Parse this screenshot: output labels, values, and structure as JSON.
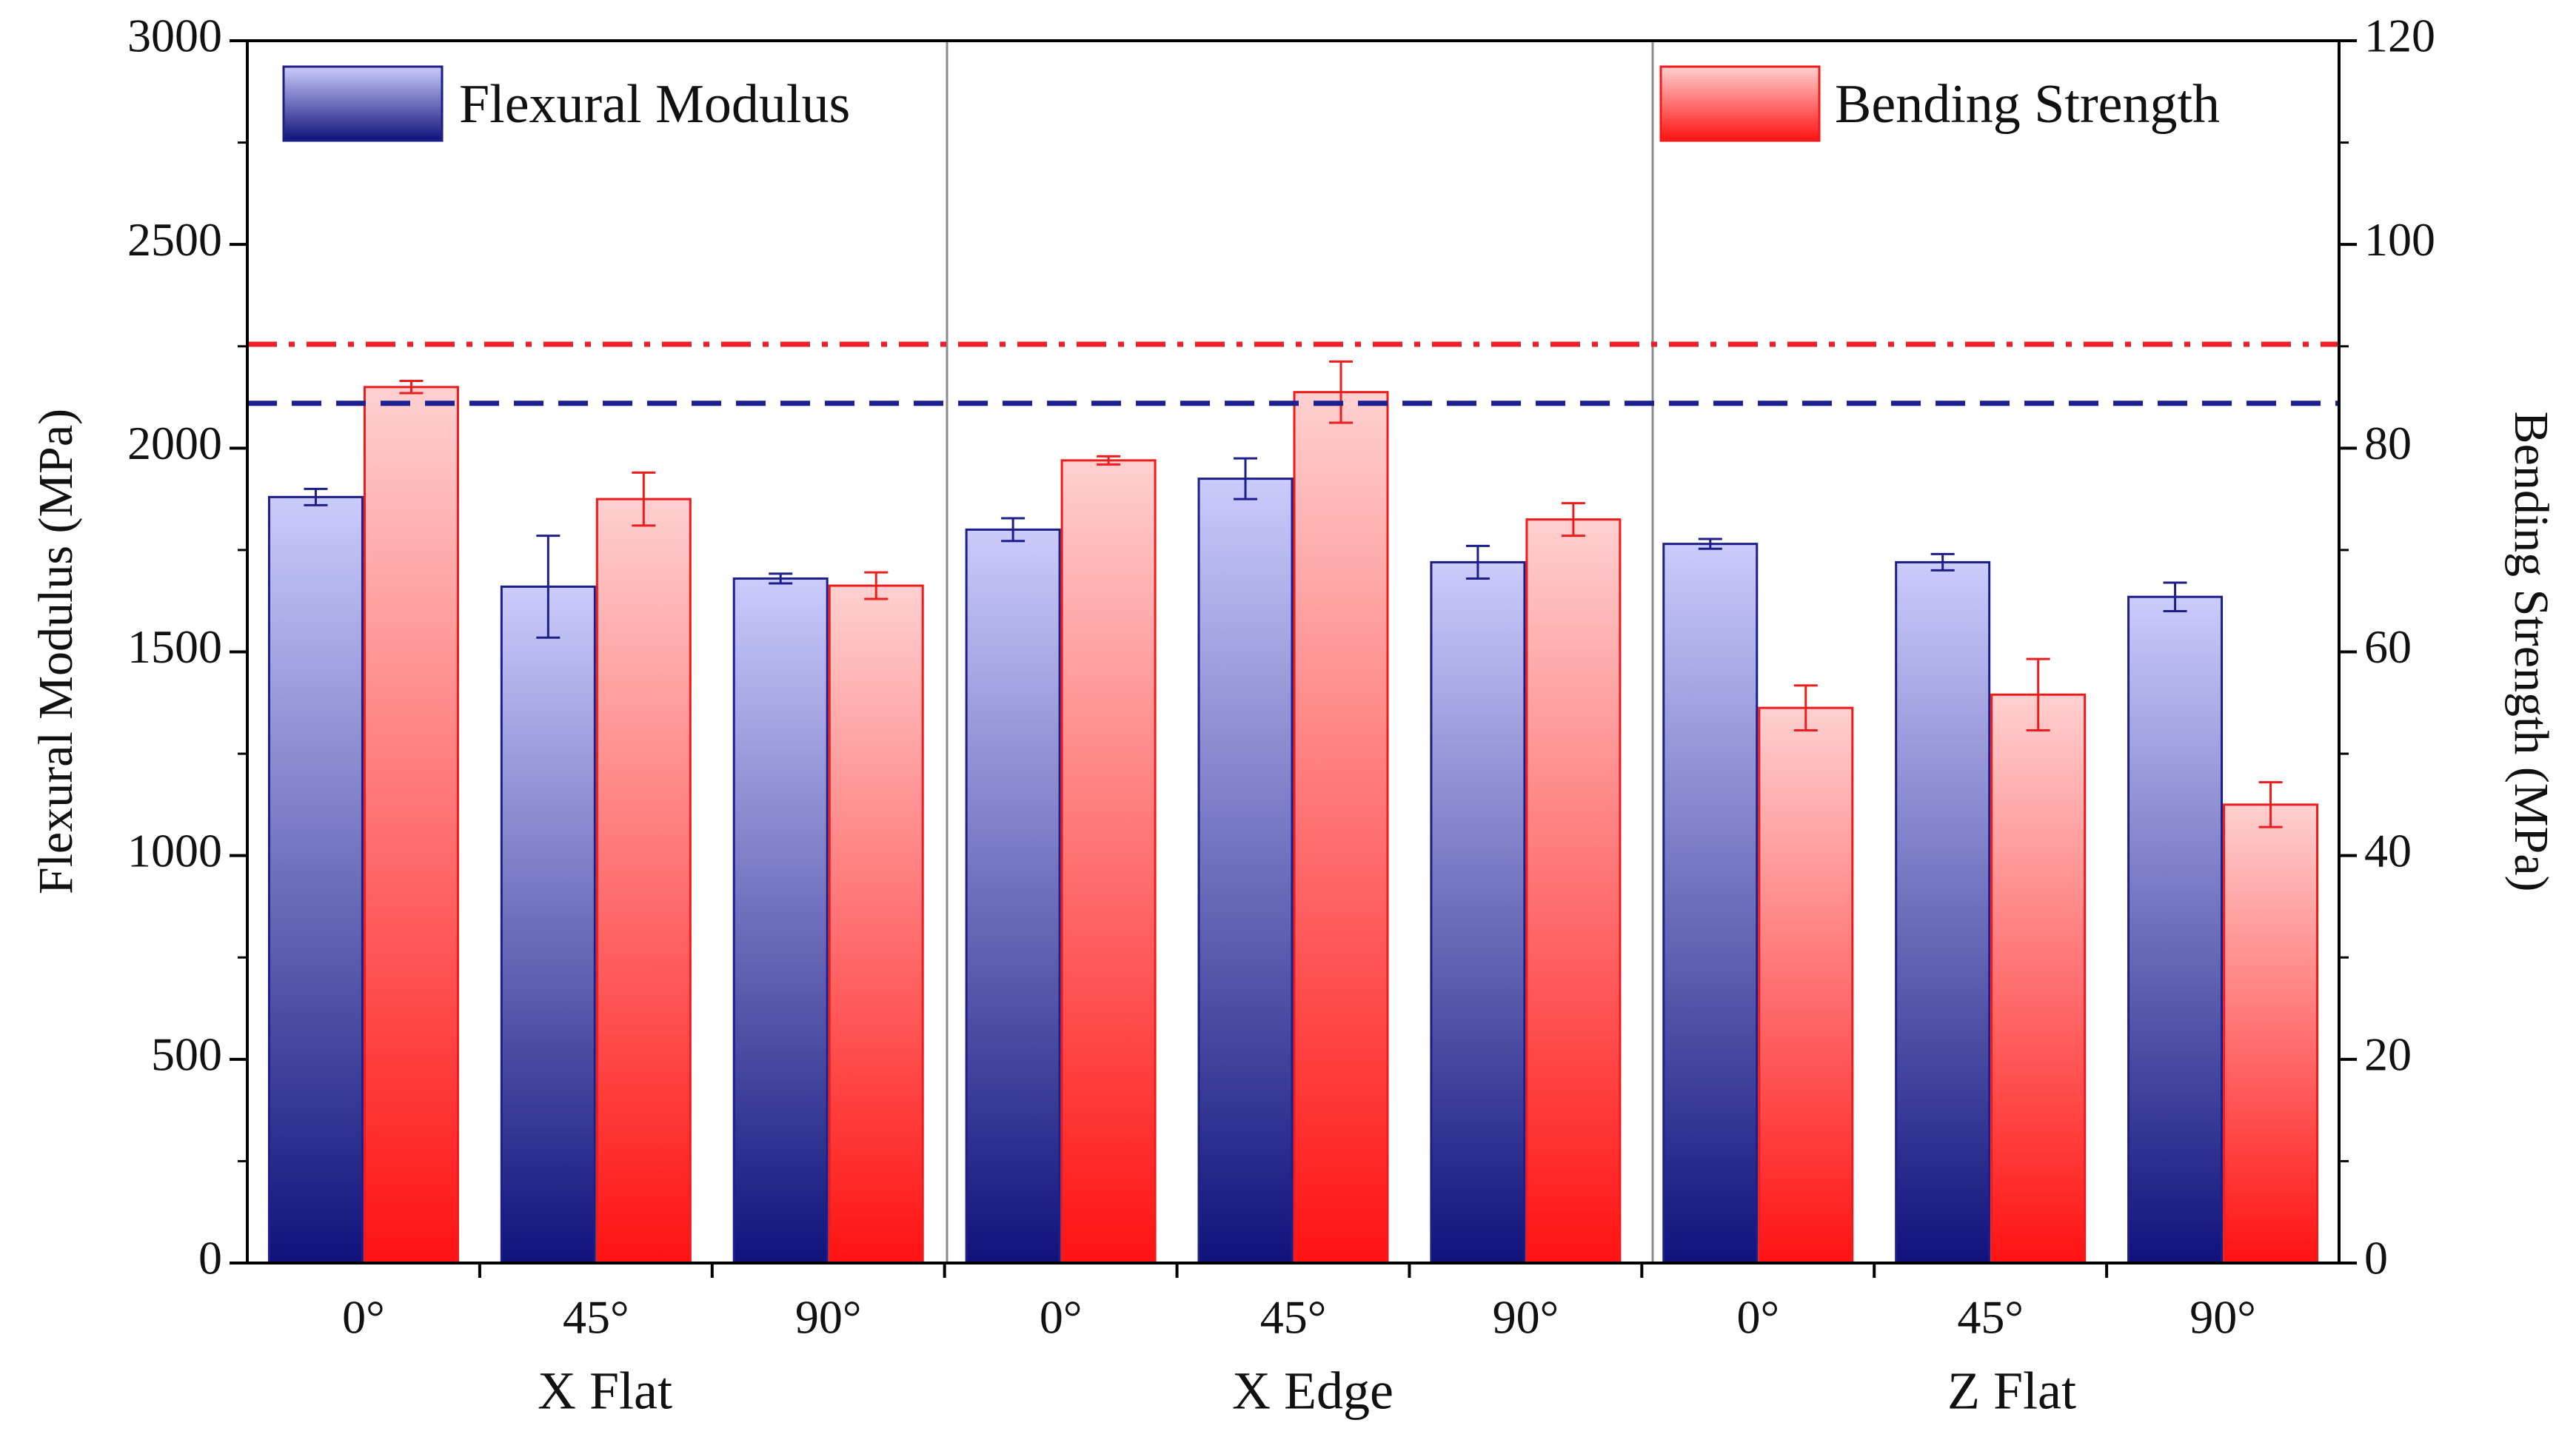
{
  "chart_data": {
    "type": "bar",
    "groups": [
      "X Flat",
      "X Edge",
      "Z Flat"
    ],
    "categories": [
      "0°",
      "45°",
      "90°",
      "0°",
      "45°",
      "90°",
      "0°",
      "45°",
      "90°"
    ],
    "series": [
      {
        "name": "Flexural Modulus",
        "axis": "left",
        "values": [
          1880,
          1660,
          1680,
          1800,
          1925,
          1720,
          1765,
          1720,
          1635
        ],
        "errors": [
          20,
          125,
          12,
          28,
          50,
          40,
          12,
          20,
          35
        ],
        "color_top": "#cbcbfd",
        "color_bottom": "#0f127a",
        "stroke": "#1c1f8a"
      },
      {
        "name": "Bending Strength",
        "axis": "right",
        "values": [
          86.0,
          75.0,
          66.5,
          78.8,
          85.5,
          73.0,
          54.5,
          55.8,
          45.0
        ],
        "errors": [
          0.6,
          2.6,
          1.3,
          0.4,
          3.0,
          1.6,
          2.2,
          3.5,
          2.2
        ],
        "color_top": "#ffd0d0",
        "color_bottom": "#ff1212",
        "stroke": "#ee1c1c"
      }
    ],
    "reference_lines": [
      {
        "name": "Flexural Modulus reference",
        "axis": "left",
        "value": 2110,
        "style": "dashed",
        "color": "#1b1f8f"
      },
      {
        "name": "Bending Strength reference",
        "axis": "right",
        "value": 90.2,
        "style": "dash-dot",
        "color": "#ee1f2a"
      }
    ],
    "ylabel": "Flexural Modulus (MPa)",
    "ylabel_right": "Bending Strength (MPa)",
    "ylim": [
      0,
      3000
    ],
    "ylim_right": [
      0,
      120
    ],
    "yticks": [
      0,
      500,
      1000,
      1500,
      2000,
      2500,
      3000
    ],
    "yticks_right": [
      0,
      20,
      40,
      60,
      80,
      100,
      120
    ],
    "legend": [
      {
        "label": "Flexural Modulus",
        "placement": "top-left"
      },
      {
        "label": "Bending Strength",
        "placement": "top-right"
      }
    ],
    "grid": false
  }
}
